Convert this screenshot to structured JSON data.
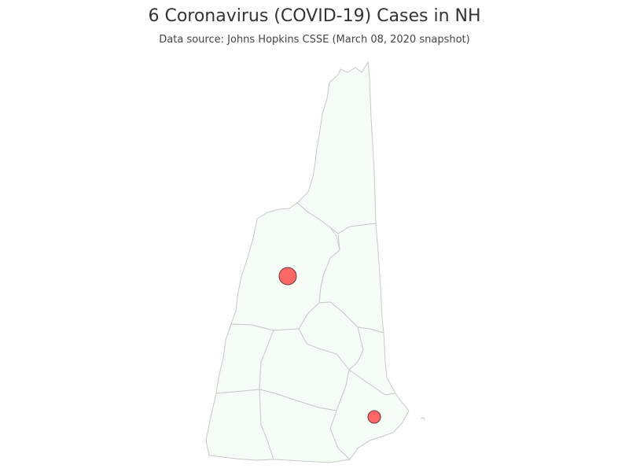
{
  "title": "6 Coronavirus (COVID-19) Cases in NH",
  "subtitle": "Data source: Johns Hopkins CSSE (March 08, 2020 snapshot)",
  "map": {
    "region": "New Hampshire",
    "land_color": "#f6fdf6",
    "border_color": "#c9c9c9",
    "marker_color": "#ff6666",
    "marker_stroke": "#6b3b3b"
  }
}
